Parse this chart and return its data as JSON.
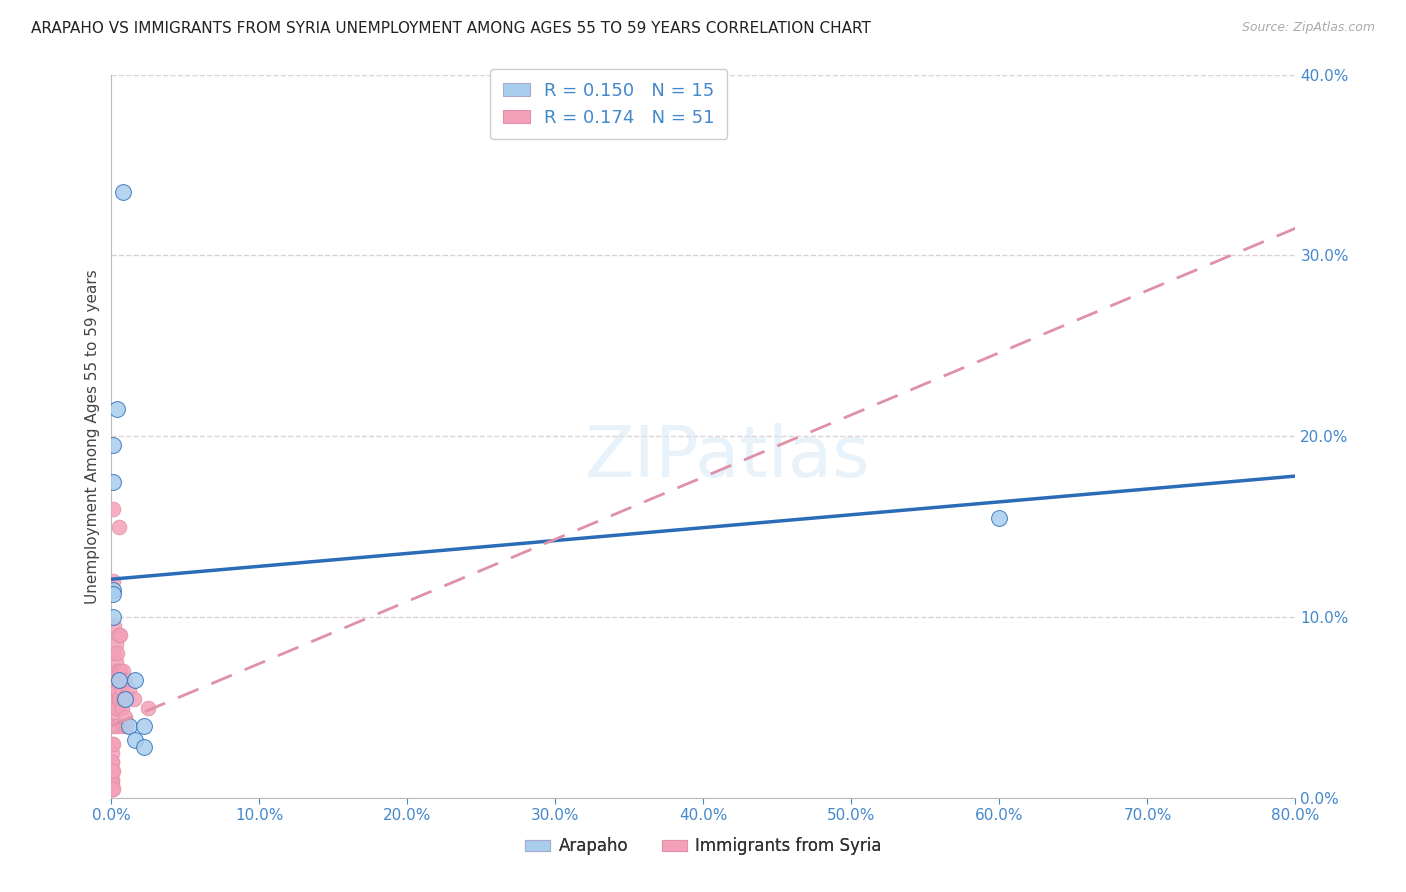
{
  "title": "ARAPAHO VS IMMIGRANTS FROM SYRIA UNEMPLOYMENT AMONG AGES 55 TO 59 YEARS CORRELATION CHART",
  "source": "Source: ZipAtlas.com",
  "ylabel": "Unemployment Among Ages 55 to 59 years",
  "xlim": [
    0,
    0.8
  ],
  "ylim": [
    0,
    0.4
  ],
  "xticks": [
    0.0,
    0.1,
    0.2,
    0.3,
    0.4,
    0.5,
    0.6,
    0.7,
    0.8
  ],
  "yticks": [
    0.0,
    0.1,
    0.2,
    0.3,
    0.4
  ],
  "arapaho_color": "#A8CDED",
  "syria_color": "#F4A0B8",
  "arapaho_line_color": "#2B6CB8",
  "syria_line_color": "#E090A8",
  "background_color": "#FFFFFF",
  "grid_color": "#DDD0D8",
  "legend_R_arapaho": "R = 0.150",
  "legend_N_arapaho": "N = 15",
  "legend_R_syria": "R = 0.174",
  "legend_N_syria": "N = 51",
  "legend_label_arapaho": "Arapaho",
  "legend_label_syria": "Immigrants from Syria",
  "arapaho_line": [
    0.0,
    0.121,
    0.8,
    0.178
  ],
  "syria_line": [
    0.0,
    0.04,
    0.8,
    0.315
  ],
  "arapaho_x": [
    0.001,
    0.001,
    0.001,
    0.001,
    0.001,
    0.004,
    0.008,
    0.009,
    0.6,
    0.012,
    0.016,
    0.016,
    0.022,
    0.022,
    0.005
  ],
  "arapaho_y": [
    0.195,
    0.175,
    0.115,
    0.113,
    0.1,
    0.215,
    0.335,
    0.055,
    0.155,
    0.04,
    0.032,
    0.065,
    0.04,
    0.028,
    0.065
  ],
  "syria_x": [
    0.0005,
    0.0005,
    0.0005,
    0.0005,
    0.0005,
    0.0005,
    0.0005,
    0.0005,
    0.0005,
    0.0005,
    0.001,
    0.001,
    0.001,
    0.001,
    0.001,
    0.001,
    0.001,
    0.001,
    0.001,
    0.001,
    0.002,
    0.002,
    0.002,
    0.002,
    0.003,
    0.003,
    0.003,
    0.003,
    0.004,
    0.004,
    0.004,
    0.004,
    0.004,
    0.005,
    0.005,
    0.005,
    0.005,
    0.006,
    0.006,
    0.007,
    0.007,
    0.008,
    0.008,
    0.008,
    0.009,
    0.009,
    0.01,
    0.01,
    0.012,
    0.015,
    0.025
  ],
  "syria_y": [
    0.03,
    0.025,
    0.02,
    0.02,
    0.015,
    0.015,
    0.01,
    0.01,
    0.008,
    0.005,
    0.16,
    0.12,
    0.08,
    0.065,
    0.055,
    0.045,
    0.04,
    0.03,
    0.015,
    0.005,
    0.095,
    0.08,
    0.065,
    0.055,
    0.085,
    0.075,
    0.06,
    0.05,
    0.08,
    0.07,
    0.06,
    0.05,
    0.04,
    0.15,
    0.09,
    0.07,
    0.055,
    0.09,
    0.07,
    0.06,
    0.05,
    0.07,
    0.055,
    0.04,
    0.065,
    0.045,
    0.055,
    0.04,
    0.06,
    0.055,
    0.05
  ]
}
